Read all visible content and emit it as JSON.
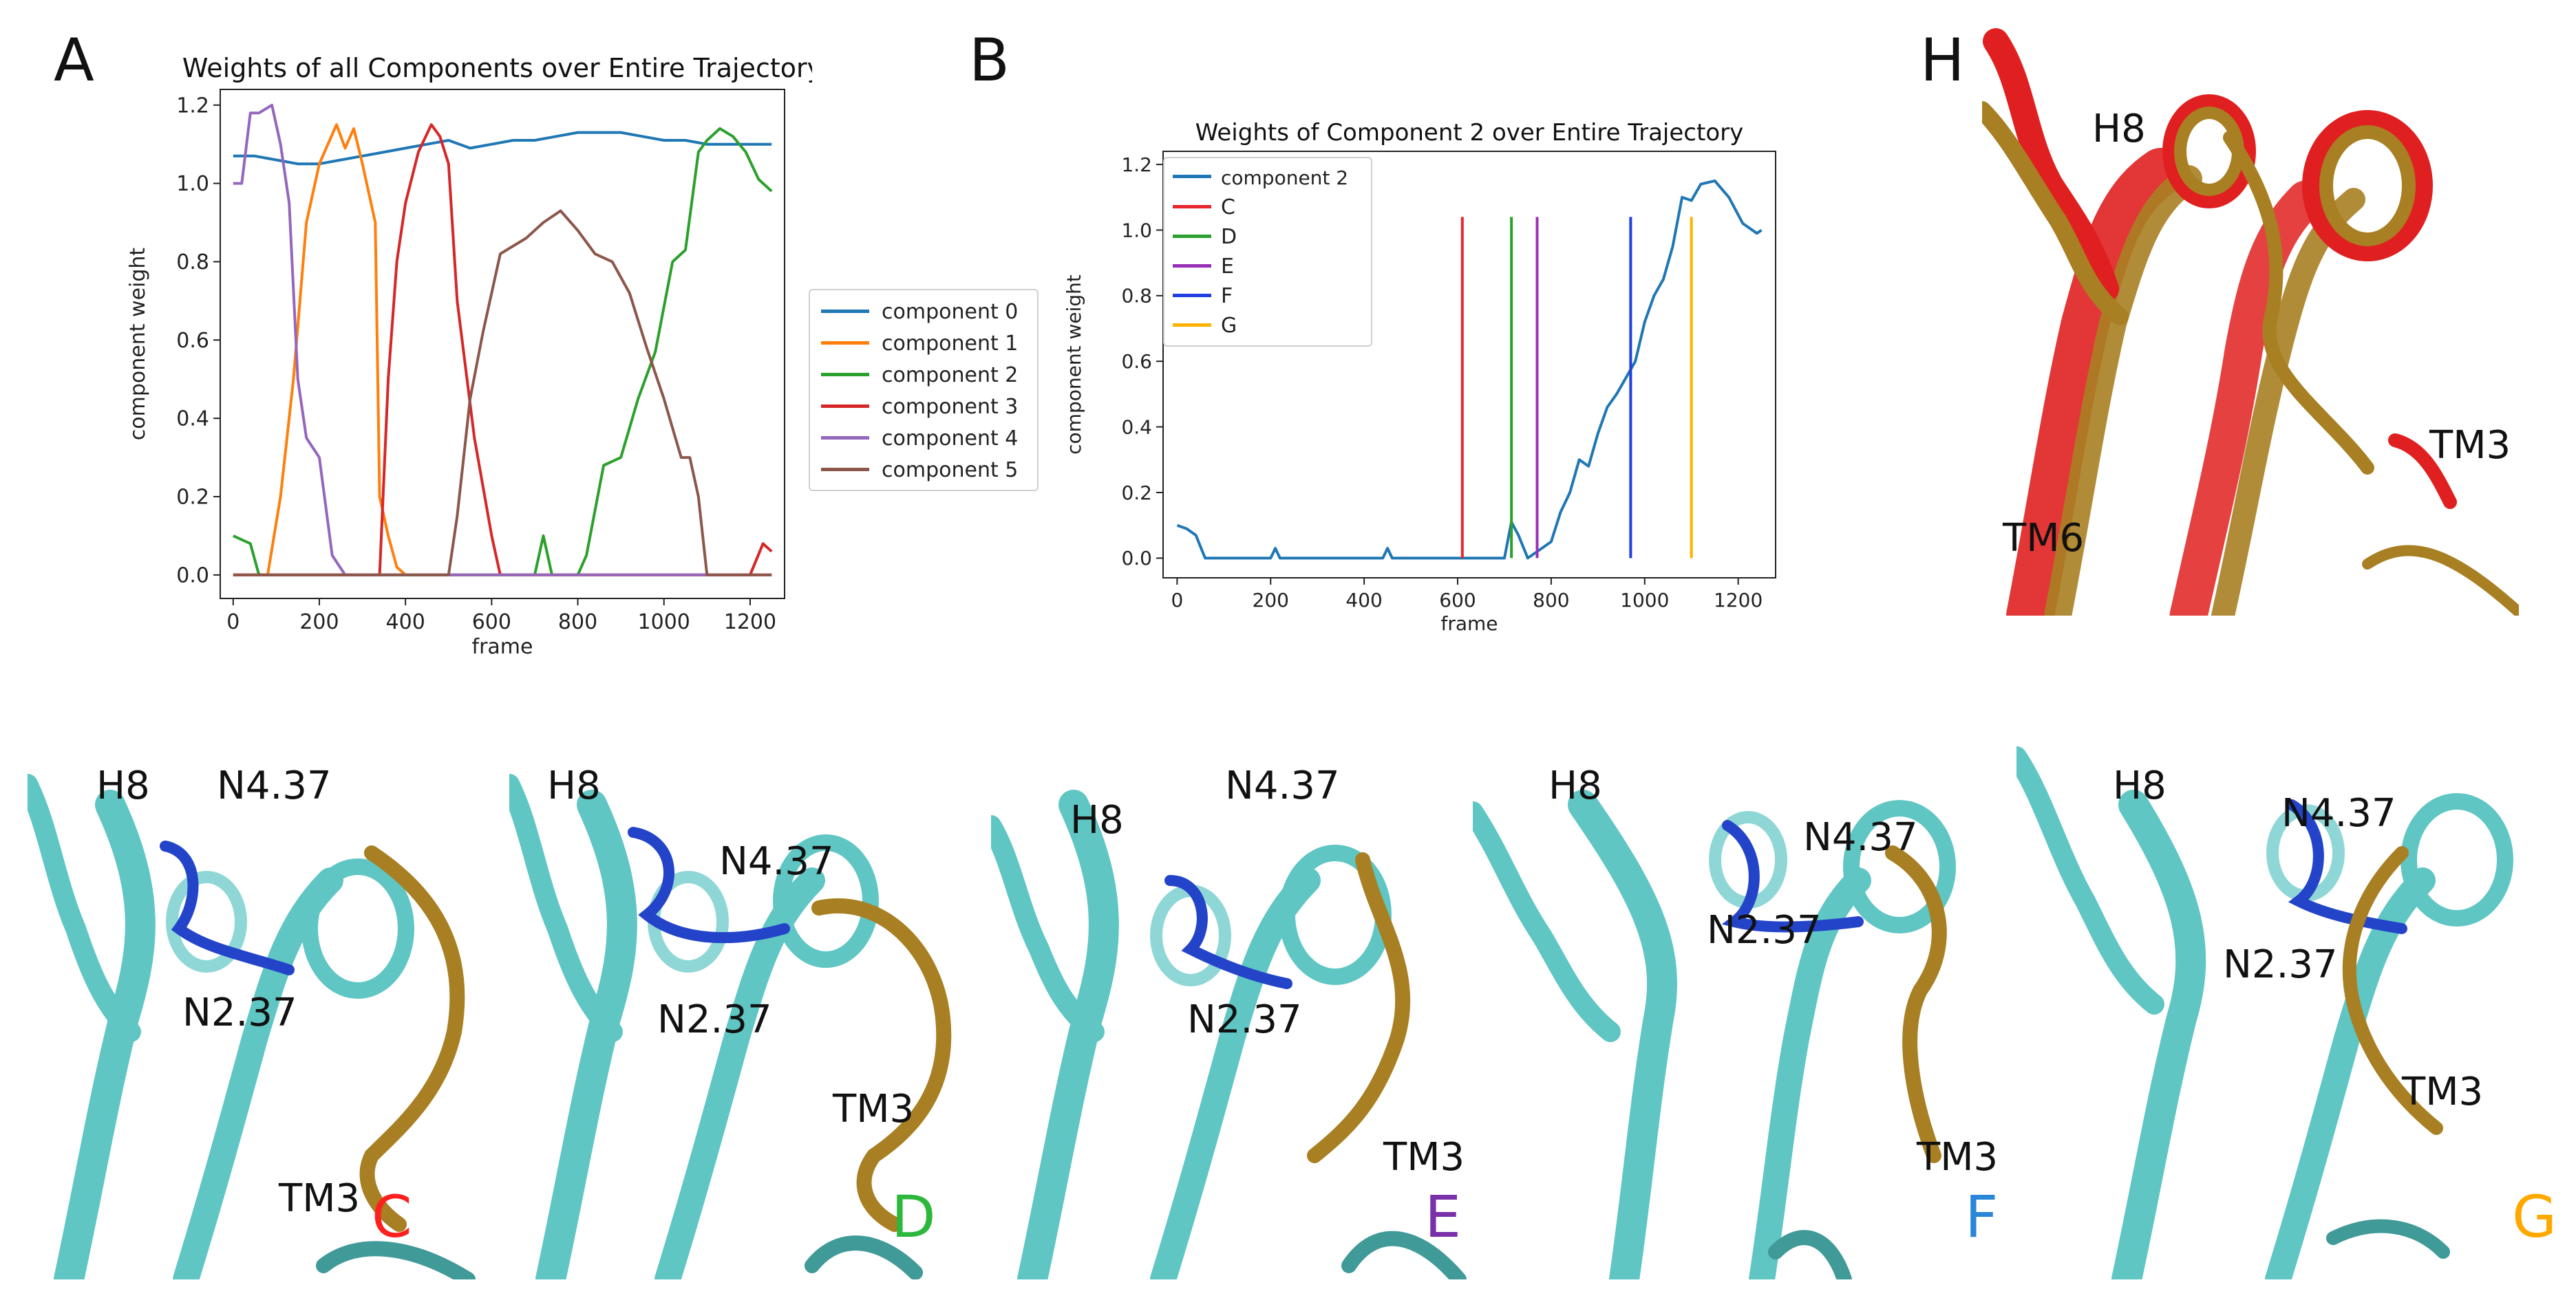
{
  "panel_letters": {
    "a": "A",
    "b": "B",
    "h": "H"
  },
  "colors": {
    "component_0": "#1f77b4",
    "component_1": "#ff7f0e",
    "component_2": "#2ca02c",
    "component_3": "#d62728",
    "component_4": "#9467bd",
    "component_5": "#8c564b",
    "line_c": "#e8262e",
    "line_d": "#2ca02c",
    "line_e": "#9a2fb8",
    "line_f": "#1f3fe0",
    "line_g": "#ffb000",
    "ribbon_cyan": "#5fc6c4",
    "ribbon_gold": "#a87f22",
    "ribbon_blue": "#2344c8",
    "ribbon_red": "#e02020",
    "state_c": "#ff1f1f",
    "state_d": "#2db83d",
    "state_e": "#7a30a8",
    "state_f": "#2a86d8",
    "state_g": "#ffa800"
  },
  "chart_data": [
    {
      "type": "line",
      "title": "Weights of all Components over Entire Trajectory",
      "xlabel": "frame",
      "ylabel": "component weight",
      "xlim": [
        -30,
        1280
      ],
      "ylim": [
        -0.06,
        1.24
      ],
      "xticks": [
        0,
        200,
        400,
        600,
        800,
        1000,
        1200
      ],
      "yticks": [
        0.0,
        0.2,
        0.4,
        0.6,
        0.8,
        1.0,
        1.2
      ],
      "legend_position": "outside-right",
      "grid": false,
      "series": [
        {
          "name": "component 0",
          "color_key": "component_0",
          "x": [
            0,
            50,
            100,
            150,
            200,
            250,
            300,
            350,
            400,
            450,
            500,
            550,
            600,
            650,
            700,
            750,
            800,
            850,
            900,
            950,
            1000,
            1050,
            1100,
            1150,
            1200,
            1250
          ],
          "y": [
            1.07,
            1.07,
            1.06,
            1.05,
            1.05,
            1.06,
            1.07,
            1.08,
            1.09,
            1.1,
            1.11,
            1.09,
            1.1,
            1.11,
            1.11,
            1.12,
            1.13,
            1.13,
            1.13,
            1.12,
            1.11,
            1.11,
            1.1,
            1.1,
            1.1,
            1.1
          ]
        },
        {
          "name": "component 1",
          "color_key": "component_1",
          "x": [
            0,
            80,
            110,
            140,
            170,
            200,
            240,
            260,
            280,
            300,
            330,
            340,
            360,
            380,
            400,
            1250
          ],
          "y": [
            0.0,
            0.0,
            0.2,
            0.5,
            0.9,
            1.05,
            1.15,
            1.09,
            1.14,
            1.05,
            0.9,
            0.2,
            0.1,
            0.02,
            0.0,
            0.0
          ]
        },
        {
          "name": "component 2",
          "color_key": "component_2",
          "x": [
            0,
            40,
            60,
            700,
            720,
            740,
            800,
            820,
            860,
            900,
            940,
            980,
            1020,
            1050,
            1080,
            1100,
            1130,
            1160,
            1190,
            1220,
            1250
          ],
          "y": [
            0.1,
            0.08,
            0.0,
            0.0,
            0.1,
            0.0,
            0.0,
            0.05,
            0.28,
            0.3,
            0.45,
            0.57,
            0.8,
            0.83,
            1.08,
            1.11,
            1.14,
            1.12,
            1.08,
            1.01,
            0.98
          ]
        },
        {
          "name": "component 3",
          "color_key": "component_3",
          "x": [
            0,
            340,
            360,
            380,
            400,
            430,
            460,
            480,
            500,
            520,
            560,
            600,
            620,
            1200,
            1230,
            1250
          ],
          "y": [
            0.0,
            0.0,
            0.5,
            0.8,
            0.95,
            1.08,
            1.15,
            1.12,
            1.05,
            0.7,
            0.35,
            0.1,
            0.0,
            0.0,
            0.08,
            0.06
          ]
        },
        {
          "name": "component 4",
          "color_key": "component_4",
          "x": [
            0,
            20,
            40,
            60,
            90,
            110,
            130,
            150,
            170,
            200,
            230,
            260,
            1250
          ],
          "y": [
            1.0,
            1.0,
            1.18,
            1.18,
            1.2,
            1.1,
            0.95,
            0.5,
            0.35,
            0.3,
            0.05,
            0.0,
            0.0
          ]
        },
        {
          "name": "component 5",
          "color_key": "component_5",
          "x": [
            0,
            500,
            520,
            550,
            580,
            620,
            680,
            720,
            760,
            800,
            840,
            880,
            920,
            960,
            1000,
            1040,
            1060,
            1080,
            1100,
            1250
          ],
          "y": [
            0.0,
            0.0,
            0.15,
            0.45,
            0.62,
            0.82,
            0.86,
            0.9,
            0.93,
            0.88,
            0.82,
            0.8,
            0.72,
            0.58,
            0.45,
            0.3,
            0.3,
            0.2,
            0.0,
            0.0
          ]
        }
      ]
    },
    {
      "type": "line",
      "title": "Weights of Component 2 over Entire Trajectory",
      "xlabel": "frame",
      "ylabel": "component weight",
      "xlim": [
        -30,
        1280
      ],
      "ylim": [
        -0.06,
        1.24
      ],
      "xticks": [
        0,
        200,
        400,
        600,
        800,
        1000,
        1200
      ],
      "yticks": [
        0.0,
        0.2,
        0.4,
        0.6,
        0.8,
        1.0,
        1.2
      ],
      "legend_position": "top-left",
      "grid": false,
      "series": [
        {
          "name": "component 2",
          "color_key": "component_0",
          "x": [
            0,
            20,
            40,
            60,
            200,
            210,
            220,
            440,
            450,
            460,
            700,
            715,
            730,
            750,
            780,
            800,
            820,
            840,
            860,
            880,
            900,
            920,
            940,
            960,
            980,
            1000,
            1020,
            1040,
            1060,
            1080,
            1100,
            1120,
            1150,
            1180,
            1210,
            1240,
            1250
          ],
          "y": [
            0.1,
            0.09,
            0.07,
            0.0,
            0.0,
            0.03,
            0.0,
            0.0,
            0.03,
            0.0,
            0.0,
            0.11,
            0.07,
            0.0,
            0.03,
            0.05,
            0.14,
            0.2,
            0.3,
            0.28,
            0.38,
            0.46,
            0.5,
            0.55,
            0.6,
            0.72,
            0.8,
            0.85,
            0.95,
            1.1,
            1.09,
            1.14,
            1.15,
            1.1,
            1.02,
            0.99,
            1.0
          ]
        }
      ],
      "vlines": [
        {
          "name": "C",
          "x": 610,
          "color_key": "line_c"
        },
        {
          "name": "D",
          "x": 715,
          "color_key": "line_d"
        },
        {
          "name": "E",
          "x": 770,
          "color_key": "line_e"
        },
        {
          "name": "F",
          "x": 970,
          "color_key": "line_f"
        },
        {
          "name": "G",
          "x": 1100,
          "color_key": "line_g"
        }
      ]
    }
  ],
  "panel_h": {
    "labels": [
      "H8",
      "TM3",
      "TM6"
    ]
  },
  "snapshots": [
    {
      "state": "C",
      "labels": [
        "H8",
        "N4.37",
        "N2.37",
        "TM3"
      ],
      "state_color_key": "state_c"
    },
    {
      "state": "D",
      "labels": [
        "H8",
        "N4.37",
        "N2.37",
        "TM3"
      ],
      "state_color_key": "state_d"
    },
    {
      "state": "E",
      "labels": [
        "H8",
        "N4.37",
        "N2.37",
        "TM3"
      ],
      "state_color_key": "state_e"
    },
    {
      "state": "F",
      "labels": [
        "H8",
        "N4.37",
        "N2.37",
        "TM3"
      ],
      "state_color_key": "state_f"
    },
    {
      "state": "G",
      "labels": [
        "H8",
        "N4.37",
        "N2.37",
        "TM3"
      ],
      "state_color_key": "state_g"
    }
  ]
}
